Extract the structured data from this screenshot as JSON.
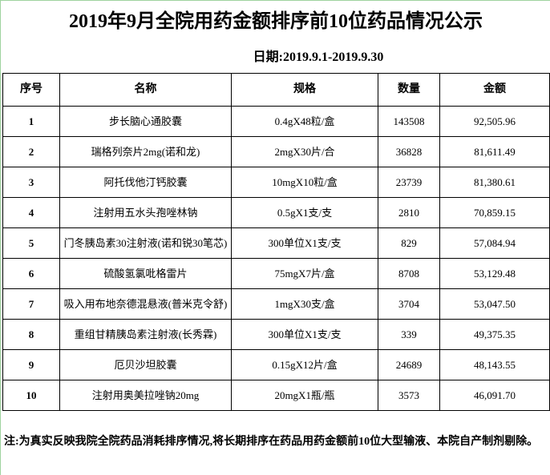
{
  "header": {
    "title": "2019年9月全院用药金额排序前10位药品情况公示",
    "date": "日期:2019.9.1-2019.9.30"
  },
  "table": {
    "columns": [
      "序号",
      "名称",
      "规格",
      "数量",
      "金额"
    ],
    "rows": [
      [
        "1",
        "步长脑心通胶囊",
        "0.4gX48粒/盒",
        "143508",
        "92,505.96"
      ],
      [
        "2",
        "瑞格列奈片2mg(诺和龙)",
        "2mgX30片/合",
        "36828",
        "81,611.49"
      ],
      [
        "3",
        "阿托伐他汀钙胶囊",
        "10mgX10粒/盒",
        "23739",
        "81,380.61"
      ],
      [
        "4",
        "注射用五水头孢唑林钠",
        "0.5gX1支/支",
        "2810",
        "70,859.15"
      ],
      [
        "5",
        "门冬胰岛素30注射液(诺和锐30笔芯)",
        "300单位X1支/支",
        "829",
        "57,084.94"
      ],
      [
        "6",
        "硫酸氢氯吡格雷片",
        "75mgX7片/盒",
        "8708",
        "53,129.48"
      ],
      [
        "7",
        "吸入用布地奈德混悬液(普米克令舒)",
        "1mgX30支/盒",
        "3704",
        "53,047.50"
      ],
      [
        "8",
        "重组甘精胰岛素注射液(长秀霖)",
        "300单位X1支/支",
        "339",
        "49,375.35"
      ],
      [
        "9",
        "厄贝沙坦胶囊",
        "0.15gX12片/盒",
        "24689",
        "48,143.55"
      ],
      [
        "10",
        "注射用奥美拉唑钠20mg",
        "20mgX1瓶/瓶",
        "3573",
        "46,091.70"
      ]
    ]
  },
  "note": "注:为真实反映我院全院药品消耗排序情况,将长期排序在药品用药金额前10位大型输液、本院自产制剂剔除。"
}
